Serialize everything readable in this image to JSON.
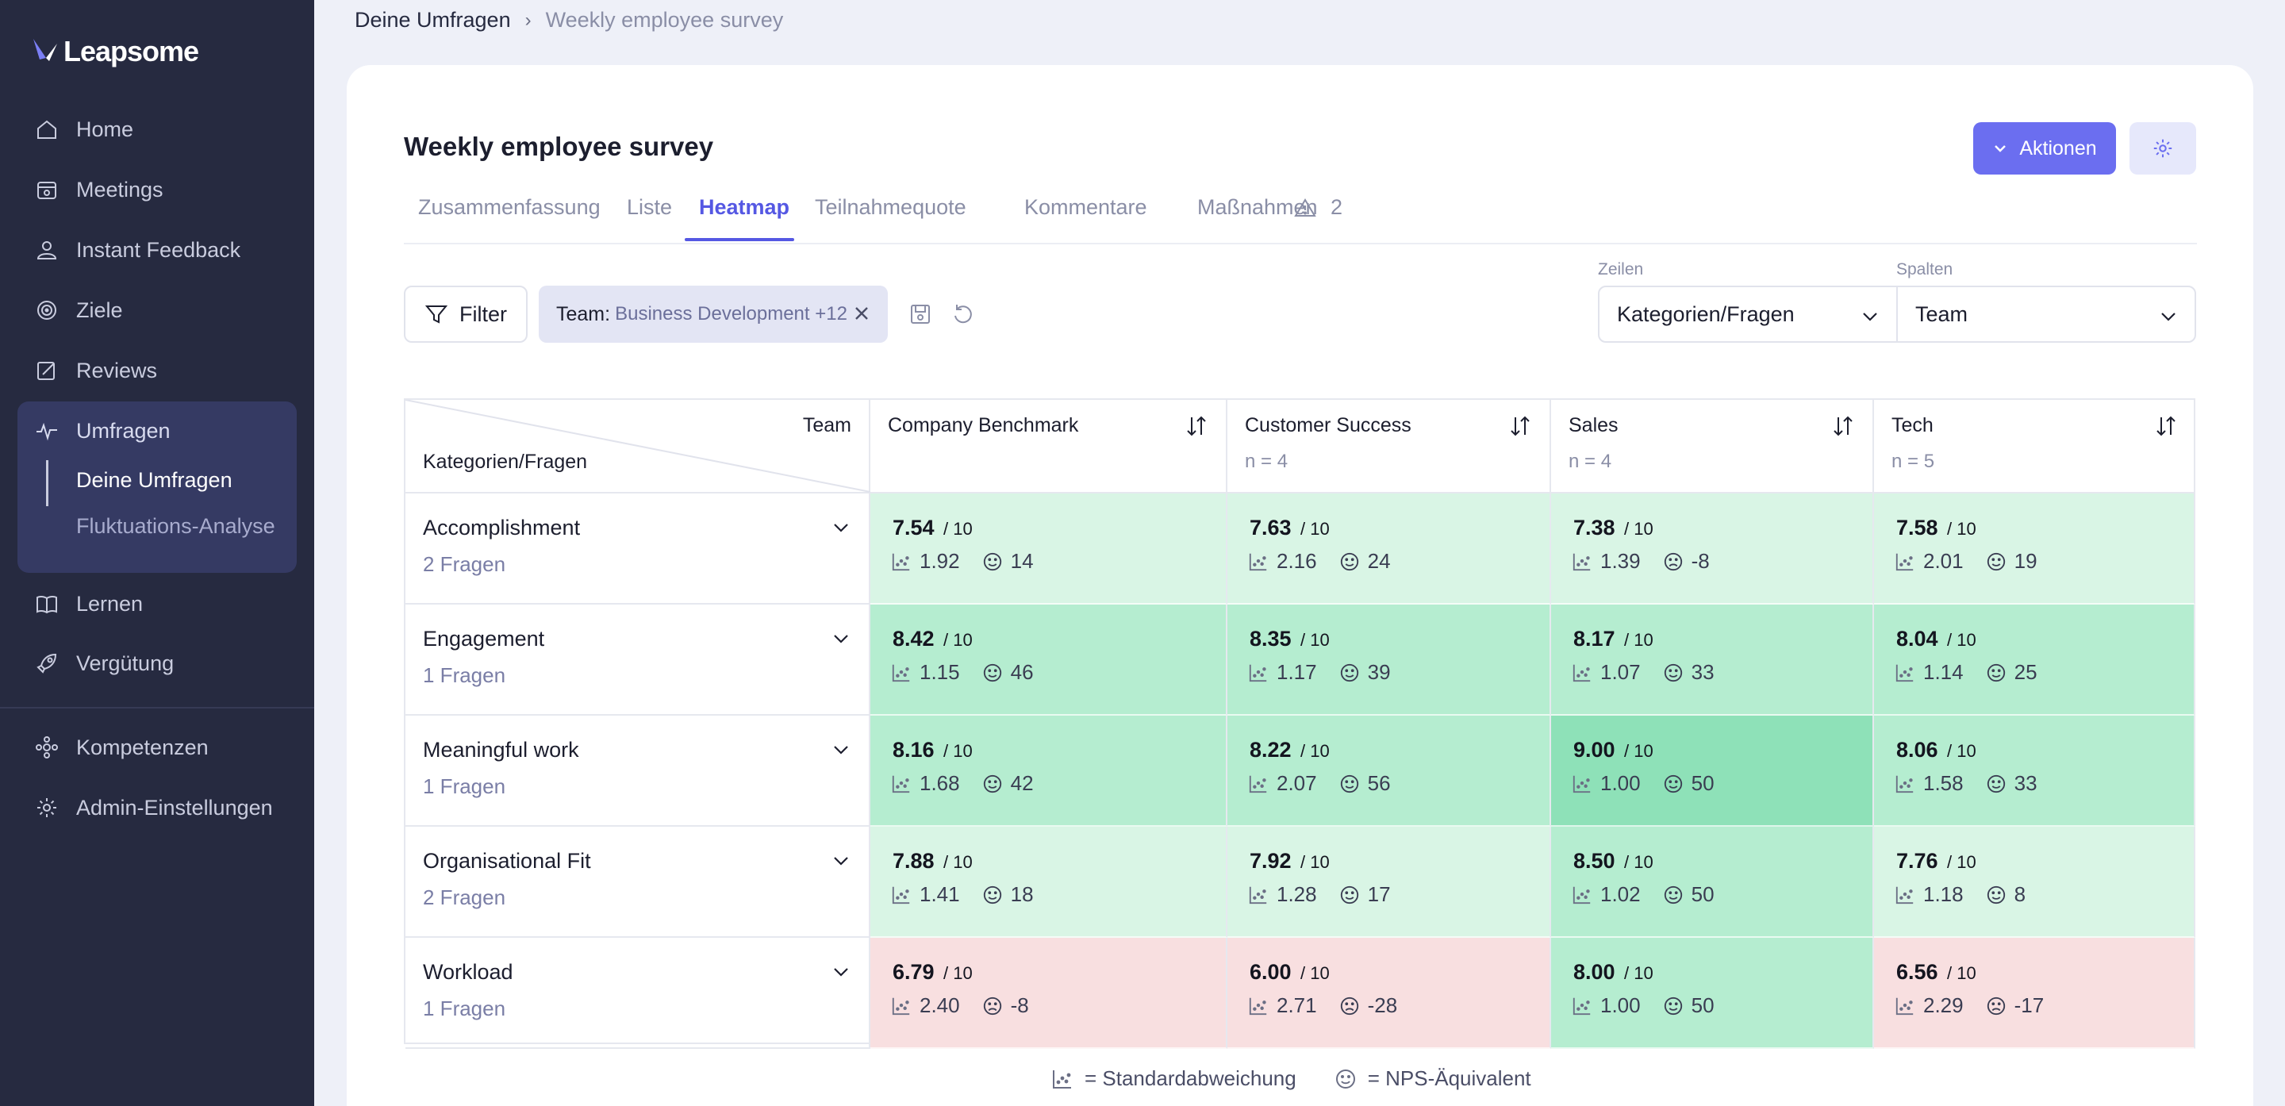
{
  "brand": {
    "name": "Leapsome"
  },
  "nav": {
    "home": "Home",
    "meetings": "Meetings",
    "instant_feedback": "Instant Feedback",
    "ziele": "Ziele",
    "reviews": "Reviews",
    "umfragen": "Umfragen",
    "deine_umfragen": "Deine Umfragen",
    "fluktuation": "Fluktuations-Analyse",
    "lernen": "Lernen",
    "verguetung": "Vergütung",
    "kompetenzen": "Kompetenzen",
    "admin": "Admin-Einstellungen"
  },
  "breadcrumb": {
    "parent": "Deine Umfragen",
    "current": "Weekly employee survey"
  },
  "page": {
    "title": "Weekly employee survey"
  },
  "actions": {
    "aktionen": "Aktionen"
  },
  "tabs": {
    "zusammenfassung": "Zusammenfassung",
    "liste": "Liste",
    "heatmap": "Heatmap",
    "teilnahmequote": "Teilnahmequote",
    "kommentare": "Kommentare",
    "massnahmen": "Maßnahmen",
    "warnings": "2"
  },
  "filter": {
    "label": "Filter",
    "chip_key": "Team:",
    "chip_value": "Business Development +12"
  },
  "selects": {
    "rows_label": "Zeilen",
    "rows_value": "Kategorien/Fragen",
    "cols_label": "Spalten",
    "cols_value": "Team"
  },
  "table": {
    "corner_top": "Team",
    "corner_bottom": "Kategorien/Fragen",
    "outof": "/ 10",
    "columns": [
      {
        "name": "Company Benchmark",
        "n": ""
      },
      {
        "name": "Customer Success",
        "n": "n = 4"
      },
      {
        "name": "Sales",
        "n": "n = 4"
      },
      {
        "name": "Tech",
        "n": "n = 5"
      }
    ],
    "rows": [
      {
        "category": "Accomplishment",
        "questions": "2 Fragen",
        "cells": [
          {
            "score": "7.54",
            "sd": "1.92",
            "nps": "14"
          },
          {
            "score": "7.63",
            "sd": "2.16",
            "nps": "24"
          },
          {
            "score": "7.38",
            "sd": "1.39",
            "nps": "-8"
          },
          {
            "score": "7.58",
            "sd": "2.01",
            "nps": "19"
          }
        ]
      },
      {
        "category": "Engagement",
        "questions": "1 Fragen",
        "cells": [
          {
            "score": "8.42",
            "sd": "1.15",
            "nps": "46"
          },
          {
            "score": "8.35",
            "sd": "1.17",
            "nps": "39"
          },
          {
            "score": "8.17",
            "sd": "1.07",
            "nps": "33"
          },
          {
            "score": "8.04",
            "sd": "1.14",
            "nps": "25"
          }
        ]
      },
      {
        "category": "Meaningful work",
        "questions": "1 Fragen",
        "cells": [
          {
            "score": "8.16",
            "sd": "1.68",
            "nps": "42"
          },
          {
            "score": "8.22",
            "sd": "2.07",
            "nps": "56"
          },
          {
            "score": "9.00",
            "sd": "1.00",
            "nps": "50"
          },
          {
            "score": "8.06",
            "sd": "1.58",
            "nps": "33"
          }
        ]
      },
      {
        "category": "Organisational Fit",
        "questions": "2 Fragen",
        "cells": [
          {
            "score": "7.88",
            "sd": "1.41",
            "nps": "18"
          },
          {
            "score": "7.92",
            "sd": "1.28",
            "nps": "17"
          },
          {
            "score": "8.50",
            "sd": "1.02",
            "nps": "50"
          },
          {
            "score": "7.76",
            "sd": "1.18",
            "nps": "8"
          }
        ]
      },
      {
        "category": "Workload",
        "questions": "1 Fragen",
        "cells": [
          {
            "score": "6.79",
            "sd": "2.40",
            "nps": "-8"
          },
          {
            "score": "6.00",
            "sd": "2.71",
            "nps": "-28"
          },
          {
            "score": "8.00",
            "sd": "1.00",
            "nps": "50"
          },
          {
            "score": "6.56",
            "sd": "2.29",
            "nps": "-17"
          }
        ]
      }
    ]
  },
  "legend": {
    "sd": "= Standardabweichung",
    "nps": "= NPS-Äquivalent"
  },
  "colors": {
    "accent": "#6b6ef0",
    "sidebar": "#262a40",
    "green_light": "#d9f5e5",
    "green_mid": "#b5edd0",
    "green_strong": "#8ee1b8",
    "red_light": "#f8dfe0"
  }
}
